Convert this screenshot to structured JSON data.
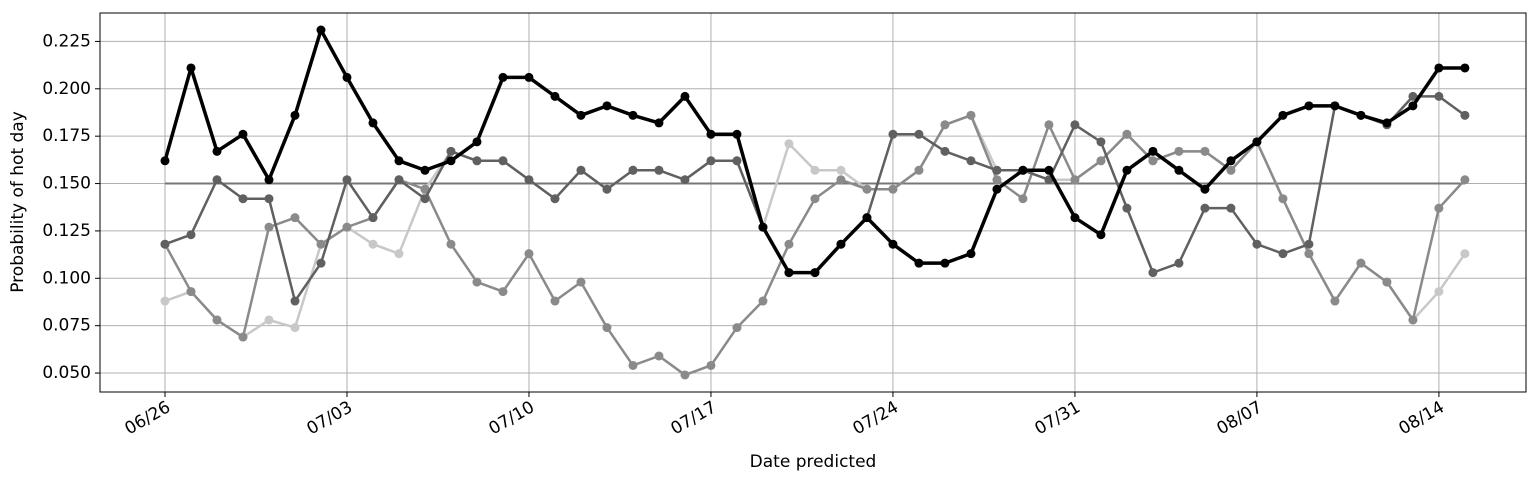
{
  "chart_data": {
    "type": "line",
    "x_label": "Date predicted",
    "y_label": "Probability of hot day",
    "categories": [
      "06/26",
      null,
      null,
      null,
      null,
      null,
      null,
      "07/03",
      null,
      null,
      null,
      null,
      null,
      null,
      "07/10",
      null,
      null,
      null,
      null,
      null,
      null,
      "07/17",
      null,
      null,
      null,
      null,
      null,
      null,
      "07/24",
      null,
      null,
      null,
      null,
      null,
      null,
      "07/31",
      null,
      null,
      null,
      null,
      null,
      null,
      "08/07",
      null,
      null,
      null,
      null,
      null,
      null,
      "08/14",
      null
    ],
    "ylim": [
      0.04,
      0.24
    ],
    "yticks": [
      {
        "value": 0.05,
        "label": "0.050"
      },
      {
        "value": 0.075,
        "label": "0.075"
      },
      {
        "value": 0.1,
        "label": "0.100"
      },
      {
        "value": 0.125,
        "label": "0.125"
      },
      {
        "value": 0.15,
        "label": "0.150"
      },
      {
        "value": 0.175,
        "label": "0.175"
      },
      {
        "value": 0.2,
        "label": "0.200"
      },
      {
        "value": 0.225,
        "label": "0.225"
      }
    ],
    "grid": true,
    "hline": 0.15,
    "hline_color": "#777777",
    "series": [
      {
        "color": "#c8c8c8",
        "values": [
          0.088,
          0.093,
          0.078,
          0.069,
          0.078,
          0.074,
          0.118,
          0.127,
          0.118,
          0.113,
          0.147,
          0.167,
          0.162,
          0.162,
          0.152,
          0.142,
          0.157,
          0.147,
          0.157,
          0.157,
          0.152,
          0.162,
          0.162,
          0.127,
          0.171,
          0.157,
          0.157,
          0.147,
          0.147,
          0.157,
          0.181,
          0.186,
          0.157,
          0.157,
          0.152,
          0.152,
          0.162,
          0.176,
          0.162,
          0.167,
          0.167,
          0.157,
          0.172,
          0.142,
          0.113,
          0.088,
          0.108,
          0.098,
          0.078,
          0.093,
          0.113
        ]
      },
      {
        "color": "#8a8a8a",
        "values": [
          0.118,
          0.093,
          0.078,
          0.069,
          0.127,
          0.132,
          0.118,
          0.127,
          0.132,
          0.152,
          0.147,
          0.118,
          0.098,
          0.093,
          0.113,
          0.088,
          0.098,
          0.074,
          0.054,
          0.059,
          0.049,
          0.054,
          0.074,
          0.088,
          0.118,
          0.142,
          0.152,
          0.147,
          0.147,
          0.157,
          0.181,
          0.186,
          0.152,
          0.142,
          0.181,
          0.152,
          0.162,
          0.176,
          0.162,
          0.167,
          0.167,
          0.157,
          0.172,
          0.142,
          0.113,
          0.088,
          0.108,
          0.098,
          0.078,
          0.137,
          0.152
        ]
      },
      {
        "color": "#606060",
        "values": [
          0.118,
          0.123,
          0.152,
          0.142,
          0.142,
          0.088,
          0.108,
          0.152,
          0.132,
          0.152,
          0.142,
          0.167,
          0.162,
          0.162,
          0.152,
          0.142,
          0.157,
          0.147,
          0.157,
          0.157,
          0.152,
          0.162,
          0.162,
          0.127,
          0.103,
          0.103,
          0.118,
          0.132,
          0.176,
          0.176,
          0.167,
          0.162,
          0.157,
          0.157,
          0.152,
          0.181,
          0.172,
          0.137,
          0.103,
          0.108,
          0.137,
          0.137,
          0.118,
          0.113,
          0.118,
          0.191,
          0.186,
          0.181,
          0.196,
          0.196,
          0.186
        ]
      },
      {
        "color": "#000000",
        "values": [
          0.162,
          0.211,
          0.167,
          0.176,
          0.152,
          0.186,
          0.231,
          0.206,
          0.182,
          0.162,
          0.157,
          0.162,
          0.172,
          0.206,
          0.206,
          0.196,
          0.186,
          0.191,
          0.186,
          0.182,
          0.196,
          0.176,
          0.176,
          0.127,
          0.103,
          0.103,
          0.118,
          0.132,
          0.118,
          0.108,
          0.108,
          0.113,
          0.147,
          0.157,
          0.157,
          0.132,
          0.123,
          0.157,
          0.167,
          0.157,
          0.147,
          0.162,
          0.172,
          0.186,
          0.191,
          0.191,
          0.186,
          0.182,
          0.191,
          0.211,
          0.211
        ]
      }
    ]
  }
}
